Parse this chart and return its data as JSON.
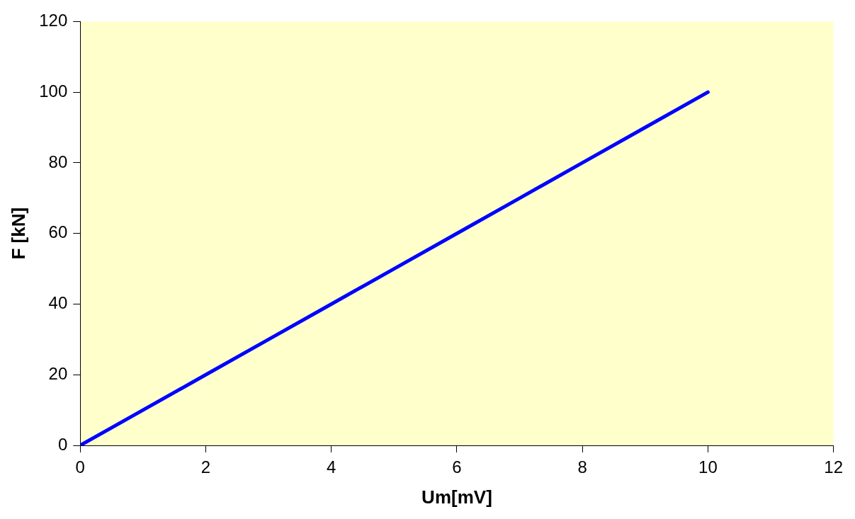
{
  "chart_data": {
    "type": "line",
    "xlabel": "Um[mV]",
    "ylabel": "F [kN]",
    "x": [
      0,
      1,
      2,
      3,
      4,
      5,
      6,
      7,
      8,
      9,
      10
    ],
    "series": [
      {
        "color": "#0000ff",
        "values": [
          0,
          10,
          20,
          30,
          40,
          50,
          60,
          70,
          80,
          90,
          100
        ]
      }
    ],
    "xlim": [
      0,
      12
    ],
    "xticks": [
      0,
      2,
      4,
      6,
      8,
      10,
      12
    ],
    "ylim": [
      0,
      120
    ],
    "yticks": [
      0,
      20,
      40,
      60,
      80,
      100,
      120
    ],
    "grid": false,
    "legend": false,
    "marker": "none",
    "line_style": "solid"
  }
}
